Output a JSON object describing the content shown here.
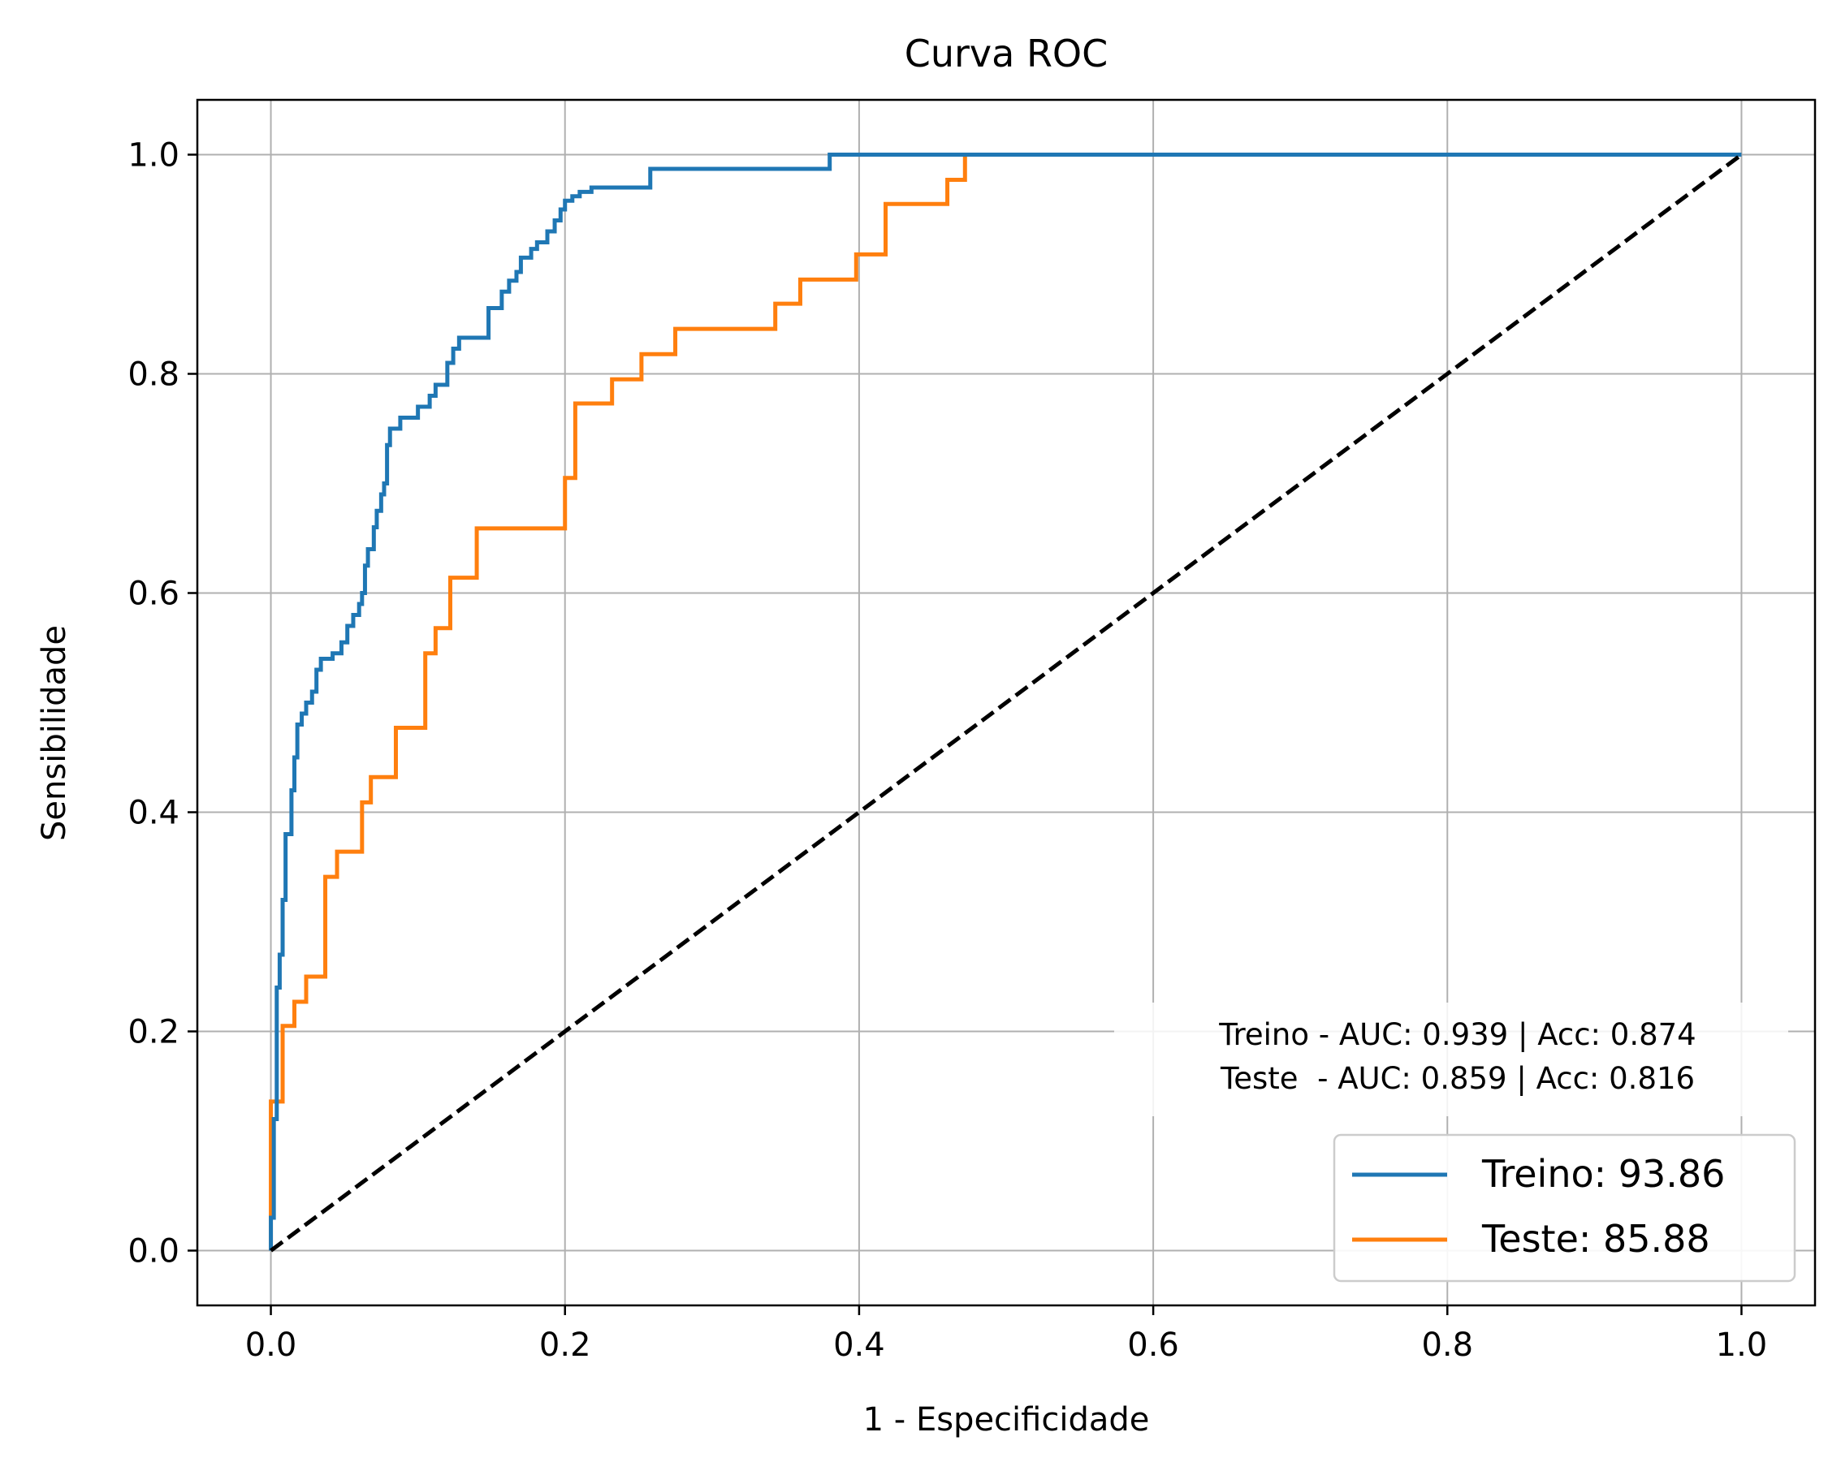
{
  "chart_data": {
    "type": "line",
    "title": "Curva ROC",
    "xlabel": "1 - Especificidade",
    "ylabel": "Sensibilidade",
    "xlim": [
      -0.05,
      1.05
    ],
    "ylim": [
      -0.05,
      1.05
    ],
    "xticks": [
      0.0,
      0.2,
      0.4,
      0.6,
      0.8,
      1.0
    ],
    "yticks": [
      0.0,
      0.2,
      0.4,
      0.6,
      0.8,
      1.0
    ],
    "xtick_labels": [
      "0.0",
      "0.2",
      "0.4",
      "0.6",
      "0.8",
      "1.0"
    ],
    "ytick_labels": [
      "0.0",
      "0.2",
      "0.4",
      "0.6",
      "0.8",
      "1.0"
    ],
    "grid": true,
    "legend_position": "lower-right",
    "annotation": {
      "lines": [
        "Treino - AUC: 0.939 | Acc: 0.874",
        "Teste  - AUC: 0.859 | Acc: 0.816"
      ]
    },
    "series": [
      {
        "name": "Treino: 93.86",
        "color": "#1f77b4",
        "points": [
          [
            0.0,
            0.0
          ],
          [
            0.0,
            0.03
          ],
          [
            0.002,
            0.03
          ],
          [
            0.002,
            0.12
          ],
          [
            0.004,
            0.12
          ],
          [
            0.004,
            0.24
          ],
          [
            0.006,
            0.24
          ],
          [
            0.006,
            0.27
          ],
          [
            0.008,
            0.27
          ],
          [
            0.008,
            0.32
          ],
          [
            0.01,
            0.32
          ],
          [
            0.01,
            0.38
          ],
          [
            0.014,
            0.38
          ],
          [
            0.014,
            0.42
          ],
          [
            0.016,
            0.42
          ],
          [
            0.016,
            0.45
          ],
          [
            0.018,
            0.45
          ],
          [
            0.018,
            0.48
          ],
          [
            0.021,
            0.48
          ],
          [
            0.021,
            0.49
          ],
          [
            0.024,
            0.49
          ],
          [
            0.024,
            0.5
          ],
          [
            0.028,
            0.5
          ],
          [
            0.028,
            0.51
          ],
          [
            0.031,
            0.51
          ],
          [
            0.031,
            0.53
          ],
          [
            0.034,
            0.53
          ],
          [
            0.034,
            0.54
          ],
          [
            0.042,
            0.54
          ],
          [
            0.042,
            0.545
          ],
          [
            0.048,
            0.545
          ],
          [
            0.048,
            0.555
          ],
          [
            0.052,
            0.555
          ],
          [
            0.052,
            0.57
          ],
          [
            0.056,
            0.57
          ],
          [
            0.056,
            0.58
          ],
          [
            0.06,
            0.58
          ],
          [
            0.06,
            0.59
          ],
          [
            0.062,
            0.59
          ],
          [
            0.062,
            0.6
          ],
          [
            0.064,
            0.6
          ],
          [
            0.064,
            0.625
          ],
          [
            0.066,
            0.625
          ],
          [
            0.066,
            0.64
          ],
          [
            0.07,
            0.64
          ],
          [
            0.07,
            0.66
          ],
          [
            0.072,
            0.66
          ],
          [
            0.072,
            0.675
          ],
          [
            0.075,
            0.675
          ],
          [
            0.075,
            0.69
          ],
          [
            0.077,
            0.69
          ],
          [
            0.077,
            0.7
          ],
          [
            0.079,
            0.7
          ],
          [
            0.079,
            0.735
          ],
          [
            0.081,
            0.735
          ],
          [
            0.081,
            0.75
          ],
          [
            0.088,
            0.75
          ],
          [
            0.088,
            0.76
          ],
          [
            0.1,
            0.76
          ],
          [
            0.1,
            0.77
          ],
          [
            0.108,
            0.77
          ],
          [
            0.108,
            0.78
          ],
          [
            0.112,
            0.78
          ],
          [
            0.112,
            0.79
          ],
          [
            0.12,
            0.79
          ],
          [
            0.12,
            0.81
          ],
          [
            0.124,
            0.81
          ],
          [
            0.124,
            0.823
          ],
          [
            0.128,
            0.823
          ],
          [
            0.128,
            0.833
          ],
          [
            0.148,
            0.833
          ],
          [
            0.148,
            0.86
          ],
          [
            0.157,
            0.86
          ],
          [
            0.157,
            0.875
          ],
          [
            0.162,
            0.875
          ],
          [
            0.162,
            0.885
          ],
          [
            0.167,
            0.885
          ],
          [
            0.167,
            0.893
          ],
          [
            0.17,
            0.893
          ],
          [
            0.17,
            0.906
          ],
          [
            0.177,
            0.906
          ],
          [
            0.177,
            0.914
          ],
          [
            0.181,
            0.914
          ],
          [
            0.181,
            0.92
          ],
          [
            0.188,
            0.92
          ],
          [
            0.188,
            0.93
          ],
          [
            0.193,
            0.93
          ],
          [
            0.193,
            0.94
          ],
          [
            0.197,
            0.94
          ],
          [
            0.197,
            0.95
          ],
          [
            0.2,
            0.95
          ],
          [
            0.2,
            0.958
          ],
          [
            0.205,
            0.958
          ],
          [
            0.205,
            0.962
          ],
          [
            0.21,
            0.962
          ],
          [
            0.21,
            0.966
          ],
          [
            0.218,
            0.966
          ],
          [
            0.218,
            0.97
          ],
          [
            0.258,
            0.97
          ],
          [
            0.258,
            0.987
          ],
          [
            0.38,
            0.987
          ],
          [
            0.38,
            1.0
          ],
          [
            1.0,
            1.0
          ]
        ]
      },
      {
        "name": "Teste: 85.88",
        "color": "#ff7f0e",
        "points": [
          [
            0.0,
            0.0
          ],
          [
            0.0,
            0.136
          ],
          [
            0.008,
            0.136
          ],
          [
            0.008,
            0.205
          ],
          [
            0.016,
            0.205
          ],
          [
            0.016,
            0.227
          ],
          [
            0.024,
            0.227
          ],
          [
            0.024,
            0.25
          ],
          [
            0.037,
            0.25
          ],
          [
            0.037,
            0.341
          ],
          [
            0.045,
            0.341
          ],
          [
            0.045,
            0.364
          ],
          [
            0.062,
            0.364
          ],
          [
            0.062,
            0.409
          ],
          [
            0.068,
            0.409
          ],
          [
            0.068,
            0.432
          ],
          [
            0.085,
            0.432
          ],
          [
            0.085,
            0.477
          ],
          [
            0.105,
            0.477
          ],
          [
            0.105,
            0.545
          ],
          [
            0.112,
            0.545
          ],
          [
            0.112,
            0.568
          ],
          [
            0.122,
            0.568
          ],
          [
            0.122,
            0.614
          ],
          [
            0.14,
            0.614
          ],
          [
            0.14,
            0.659
          ],
          [
            0.2,
            0.659
          ],
          [
            0.2,
            0.705
          ],
          [
            0.207,
            0.705
          ],
          [
            0.207,
            0.773
          ],
          [
            0.232,
            0.773
          ],
          [
            0.232,
            0.795
          ],
          [
            0.252,
            0.795
          ],
          [
            0.252,
            0.818
          ],
          [
            0.275,
            0.818
          ],
          [
            0.275,
            0.841
          ],
          [
            0.343,
            0.841
          ],
          [
            0.343,
            0.864
          ],
          [
            0.36,
            0.864
          ],
          [
            0.36,
            0.886
          ],
          [
            0.398,
            0.886
          ],
          [
            0.398,
            0.909
          ],
          [
            0.418,
            0.909
          ],
          [
            0.418,
            0.955
          ],
          [
            0.46,
            0.955
          ],
          [
            0.46,
            0.977
          ],
          [
            0.472,
            0.977
          ],
          [
            0.472,
            1.0
          ],
          [
            1.0,
            1.0
          ]
        ]
      },
      {
        "color": "#000000",
        "style": "dashed",
        "points": [
          [
            0.0,
            0.0
          ],
          [
            1.0,
            1.0
          ]
        ]
      }
    ]
  }
}
